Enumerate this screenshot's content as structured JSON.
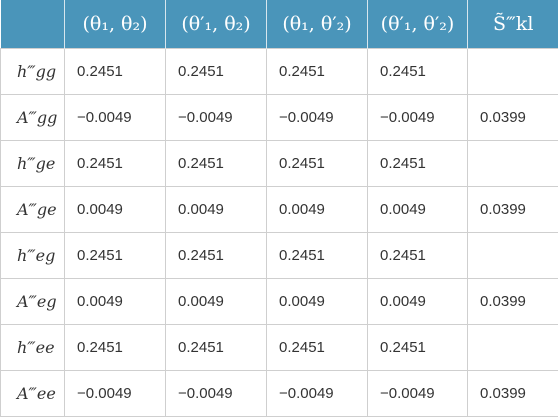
{
  "table": {
    "headers": [
      "",
      "(θ₁, θ₂)",
      "(θ′₁, θ₂)",
      "(θ₁, θ′₂)",
      "(θ′₁, θ′₂)",
      "S̃‴kl"
    ],
    "rows": [
      {
        "label": "h‴gg",
        "values": [
          "0.2451",
          "0.2451",
          "0.2451",
          "0.2451",
          ""
        ]
      },
      {
        "label": "A‴gg",
        "values": [
          "−0.0049",
          "−0.0049",
          "−0.0049",
          "−0.0049",
          "0.0399"
        ]
      },
      {
        "label": "h‴ge",
        "values": [
          "0.2451",
          "0.2451",
          "0.2451",
          "0.2451",
          ""
        ]
      },
      {
        "label": "A‴ge",
        "values": [
          "0.0049",
          "0.0049",
          "0.0049",
          "0.0049",
          "0.0399"
        ]
      },
      {
        "label": "h‴eg",
        "values": [
          "0.2451",
          "0.2451",
          "0.2451",
          "0.2451",
          ""
        ]
      },
      {
        "label": "A‴eg",
        "values": [
          "0.0049",
          "0.0049",
          "0.0049",
          "0.0049",
          "0.0399"
        ]
      },
      {
        "label": "h‴ee",
        "values": [
          "0.2451",
          "0.2451",
          "0.2451",
          "0.2451",
          ""
        ]
      },
      {
        "label": "A‴ee",
        "values": [
          "−0.0049",
          "−0.0049",
          "−0.0049",
          "−0.0049",
          "0.0399"
        ]
      }
    ]
  }
}
